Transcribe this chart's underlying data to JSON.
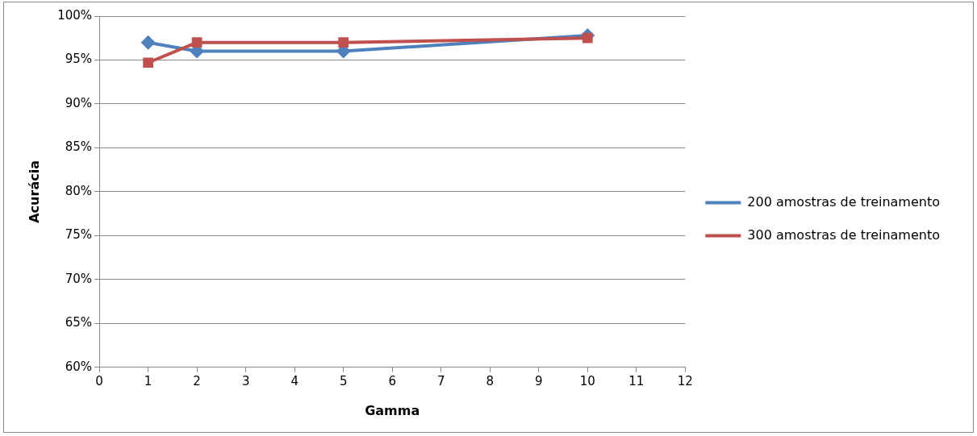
{
  "chart_data": {
    "type": "line",
    "xlabel": "Gamma",
    "ylabel": "Acurácia",
    "xlim": [
      0,
      12
    ],
    "xticks": [
      0,
      1,
      2,
      3,
      4,
      5,
      6,
      7,
      8,
      9,
      10,
      11,
      12
    ],
    "ylim": [
      60,
      100
    ],
    "yticks": [
      {
        "value": 60,
        "label": "60%"
      },
      {
        "value": 65,
        "label": "65%"
      },
      {
        "value": 70,
        "label": "70%"
      },
      {
        "value": 75,
        "label": "75%"
      },
      {
        "value": 80,
        "label": "80%"
      },
      {
        "value": 85,
        "label": "85%"
      },
      {
        "value": 90,
        "label": "90%"
      },
      {
        "value": 95,
        "label": "95%"
      },
      {
        "value": 100,
        "label": "100%"
      }
    ],
    "grid": "y",
    "legend": "right",
    "series": [
      {
        "name": "200 amostras de treinamento",
        "color": "#4f81bd",
        "marker": "diamond",
        "x": [
          1,
          2,
          5,
          10
        ],
        "values": [
          97,
          96,
          96,
          97.8
        ]
      },
      {
        "name": "300 amostras de treinamento",
        "color": "#c0504d",
        "marker": "square",
        "x": [
          1,
          2,
          5,
          10
        ],
        "values": [
          94.7,
          97,
          97,
          97.5
        ]
      }
    ]
  }
}
